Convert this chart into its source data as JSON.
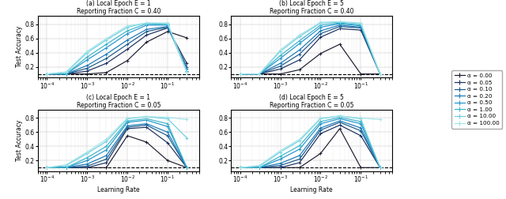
{
  "learning_rates": [
    0.0001,
    0.0003,
    0.001,
    0.003,
    0.01,
    0.03,
    0.1,
    0.3
  ],
  "baseline": 0.1,
  "titles": [
    "(a) Local Epoch E = 1\nReporting Fraction C = 0.40",
    "(b) Local Epoch E = 5\nReporting Fraction C = 0.40",
    "(c) Local Epoch E = 1\nReporting Fraction C = 0.05",
    "(d) Local Epoch E = 5\nReporting Fraction C = 0.05"
  ],
  "subplot_data": {
    "a": [
      [
        0.1,
        0.1,
        0.1,
        0.12,
        0.29,
        0.55,
        0.7,
        0.61
      ],
      [
        0.1,
        0.1,
        0.14,
        0.25,
        0.45,
        0.65,
        0.75,
        0.25
      ],
      [
        0.1,
        0.1,
        0.18,
        0.32,
        0.52,
        0.7,
        0.76,
        0.2
      ],
      [
        0.1,
        0.1,
        0.22,
        0.38,
        0.58,
        0.73,
        0.77,
        0.17
      ],
      [
        0.1,
        0.1,
        0.3,
        0.47,
        0.67,
        0.79,
        0.79,
        0.14
      ],
      [
        0.1,
        0.1,
        0.34,
        0.52,
        0.71,
        0.81,
        0.8,
        0.13
      ],
      [
        0.1,
        0.12,
        0.4,
        0.58,
        0.76,
        0.82,
        0.81,
        0.13
      ],
      [
        0.1,
        0.13,
        0.42,
        0.6,
        0.78,
        0.82,
        0.82,
        0.13
      ]
    ],
    "b": [
      [
        0.1,
        0.1,
        0.1,
        0.16,
        0.39,
        0.52,
        0.1,
        0.1
      ],
      [
        0.1,
        0.1,
        0.17,
        0.3,
        0.62,
        0.74,
        0.72,
        0.1
      ],
      [
        0.1,
        0.1,
        0.21,
        0.38,
        0.67,
        0.77,
        0.75,
        0.1
      ],
      [
        0.1,
        0.1,
        0.25,
        0.44,
        0.71,
        0.79,
        0.76,
        0.1
      ],
      [
        0.1,
        0.1,
        0.32,
        0.53,
        0.76,
        0.81,
        0.78,
        0.1
      ],
      [
        0.1,
        0.1,
        0.36,
        0.57,
        0.79,
        0.82,
        0.79,
        0.1
      ],
      [
        0.1,
        0.1,
        0.42,
        0.63,
        0.82,
        0.83,
        0.81,
        0.1
      ],
      [
        0.1,
        0.1,
        0.44,
        0.65,
        0.83,
        0.84,
        0.82,
        0.1
      ]
    ],
    "c": [
      [
        0.1,
        0.1,
        0.1,
        0.1,
        0.55,
        0.46,
        0.2,
        0.1
      ],
      [
        0.1,
        0.1,
        0.1,
        0.17,
        0.65,
        0.67,
        0.45,
        0.1
      ],
      [
        0.1,
        0.1,
        0.12,
        0.22,
        0.67,
        0.7,
        0.55,
        0.1
      ],
      [
        0.1,
        0.1,
        0.15,
        0.27,
        0.69,
        0.72,
        0.6,
        0.1
      ],
      [
        0.1,
        0.1,
        0.2,
        0.35,
        0.74,
        0.77,
        0.68,
        0.1
      ],
      [
        0.1,
        0.1,
        0.24,
        0.4,
        0.76,
        0.79,
        0.72,
        0.1
      ],
      [
        0.1,
        0.13,
        0.3,
        0.47,
        0.79,
        0.82,
        0.79,
        0.52
      ],
      [
        0.1,
        0.14,
        0.32,
        0.5,
        0.8,
        0.82,
        0.81,
        0.78
      ]
    ],
    "d": [
      [
        0.1,
        0.1,
        0.1,
        0.1,
        0.3,
        0.65,
        0.1,
        0.1
      ],
      [
        0.1,
        0.1,
        0.1,
        0.17,
        0.58,
        0.7,
        0.55,
        0.1
      ],
      [
        0.1,
        0.1,
        0.13,
        0.22,
        0.63,
        0.74,
        0.62,
        0.1
      ],
      [
        0.1,
        0.1,
        0.16,
        0.27,
        0.66,
        0.76,
        0.66,
        0.1
      ],
      [
        0.1,
        0.1,
        0.22,
        0.36,
        0.72,
        0.79,
        0.72,
        0.1
      ],
      [
        0.1,
        0.1,
        0.26,
        0.41,
        0.75,
        0.81,
        0.75,
        0.1
      ],
      [
        0.1,
        0.12,
        0.32,
        0.48,
        0.79,
        0.83,
        0.79,
        0.1
      ],
      [
        0.1,
        0.13,
        0.34,
        0.5,
        0.8,
        0.83,
        0.8,
        0.78
      ]
    ]
  },
  "colors": [
    "#1c1c2e",
    "#1a3060",
    "#1a5a8a",
    "#1878b8",
    "#2196cc",
    "#3ab4cc",
    "#6dcee0",
    "#a0e4e8"
  ],
  "ylim": [
    0.05,
    0.92
  ],
  "yticks": [
    0.2,
    0.4,
    0.6,
    0.8
  ],
  "xlabel": "Learning Rate",
  "ylabel": "Test Accuracy",
  "legend_labels": [
    "α = 0.00",
    "α = 0.05",
    "α = 0.10",
    "α = 0.20",
    "α = 0.50",
    "α = 1.00",
    "α = 10.00",
    "α = 100.00"
  ]
}
